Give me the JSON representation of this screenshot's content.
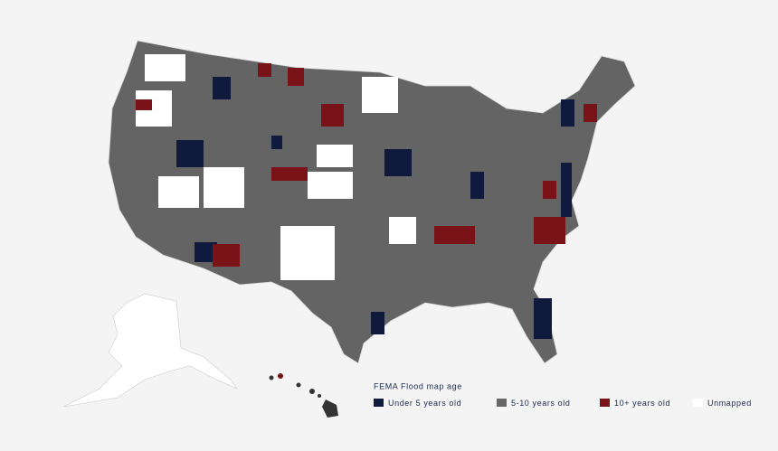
{
  "legend": {
    "title": "FEMA Flood map age",
    "items": [
      {
        "label": "Under 5 years old",
        "color": "#0f1a3c"
      },
      {
        "label": "5-10 years old",
        "color": "#666666"
      },
      {
        "label": "10+ years old",
        "color": "#7a1318"
      },
      {
        "label": "Unmapped",
        "color": "#ffffff"
      }
    ]
  }
}
